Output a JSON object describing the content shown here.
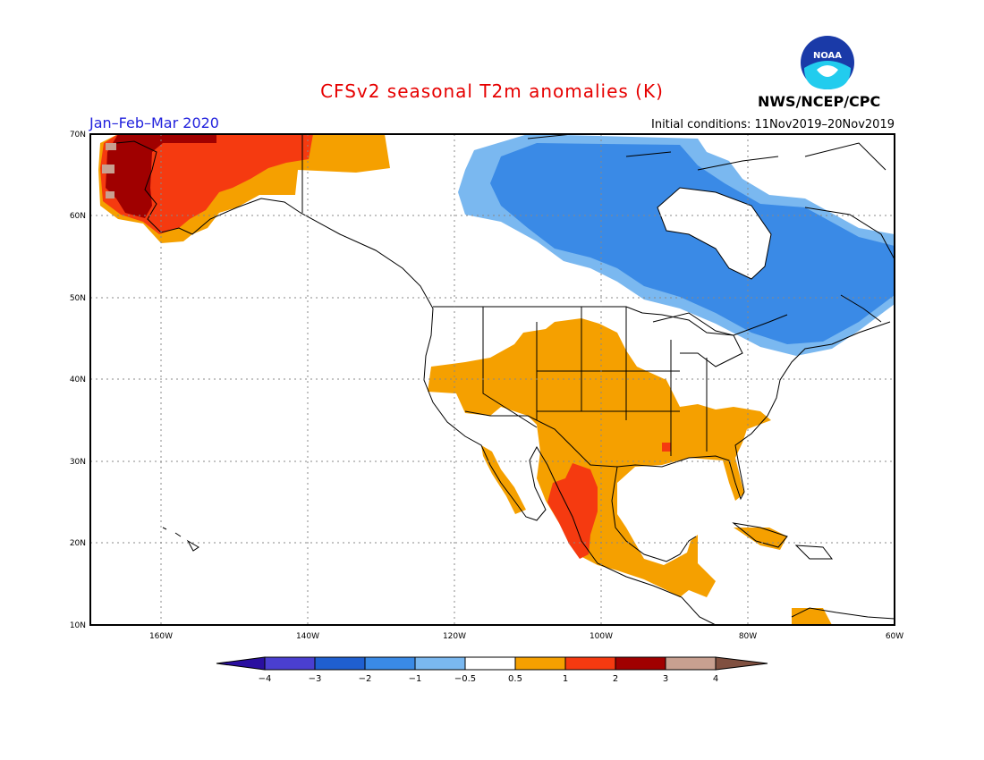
{
  "title": "CFSv2 seasonal T2m anomalies (K)",
  "season": "Jan–Feb–Mar 2020",
  "initial_conditions": "Initial conditions: 11Nov2019–20Nov2019",
  "agency": "NWS/NCEP/CPC",
  "logo_text": "NOAA",
  "lat_labels": [
    "70N",
    "60N",
    "50N",
    "40N",
    "30N",
    "20N",
    "10N"
  ],
  "lon_labels": [
    "160W",
    "140W",
    "120W",
    "100W",
    "80W",
    "60W"
  ],
  "colorbar": {
    "labels": [
      "−4",
      "−3",
      "−2",
      "−1",
      "−0.5",
      "0.5",
      "1",
      "2",
      "3",
      "4"
    ],
    "colors": [
      "#2a0fa0",
      "#4a3fd0",
      "#1f5fd0",
      "#3a8ae6",
      "#7ab8f0",
      "#ffffff",
      "#f5a000",
      "#f53a10",
      "#a00000",
      "#c8a090",
      "#805040"
    ]
  },
  "colors": {
    "cool": "#3a8ae6",
    "cool_light": "#7ab8f0",
    "warm": "#f5a000",
    "hot": "#f53a10",
    "very_hot": "#a00000",
    "brown": "#c8a090"
  }
}
